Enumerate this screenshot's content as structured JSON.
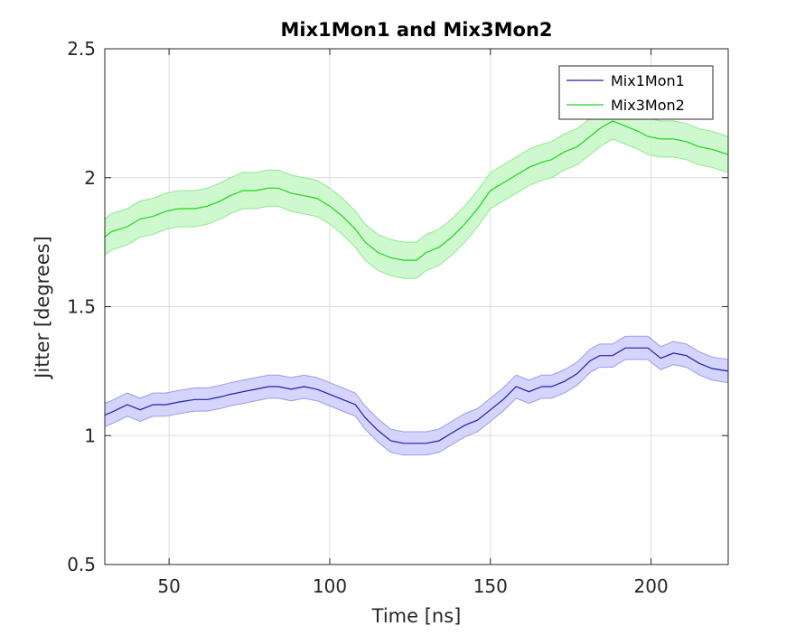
{
  "chart_data": {
    "type": "line",
    "title": "Mix1Mon1 and Mix3Mon2",
    "xlabel": "Time [ns]",
    "ylabel": "Jitter [degrees]",
    "xlim": [
      30,
      224
    ],
    "ylim": [
      0.5,
      2.5
    ],
    "xticks": [
      50,
      100,
      150,
      200
    ],
    "yticks": [
      0.5,
      1,
      1.5,
      2,
      2.5
    ],
    "xtick_labels": [
      "50",
      "100",
      "150",
      "200"
    ],
    "ytick_labels": [
      "0.5",
      "1",
      "1.5",
      "2",
      "2.5"
    ],
    "grid": true,
    "legend_position": "top-right",
    "x": [
      30,
      32,
      37,
      41,
      45,
      49,
      53,
      58,
      62,
      66,
      69,
      73,
      77,
      81,
      84,
      88,
      92,
      96,
      100,
      104,
      108,
      111,
      115,
      119,
      123,
      127,
      130,
      134,
      138,
      142,
      146,
      150,
      154,
      158,
      162,
      166,
      169,
      173,
      177,
      181,
      184,
      188,
      192,
      196,
      199,
      203,
      207,
      211,
      215,
      219,
      224
    ],
    "series": [
      {
        "name": "Mix1Mon1",
        "color": "#1f1fa6",
        "band_color": "#ccccff",
        "band_stroke": "#9b9be8",
        "values": [
          1.08,
          1.09,
          1.12,
          1.1,
          1.12,
          1.12,
          1.13,
          1.14,
          1.14,
          1.15,
          1.16,
          1.17,
          1.18,
          1.19,
          1.19,
          1.18,
          1.19,
          1.18,
          1.16,
          1.14,
          1.12,
          1.07,
          1.02,
          0.98,
          0.97,
          0.97,
          0.97,
          0.98,
          1.01,
          1.04,
          1.06,
          1.1,
          1.14,
          1.19,
          1.17,
          1.19,
          1.19,
          1.21,
          1.24,
          1.29,
          1.31,
          1.31,
          1.34,
          1.34,
          1.34,
          1.3,
          1.32,
          1.31,
          1.28,
          1.26,
          1.25
        ],
        "band_halfwidth": 0.045
      },
      {
        "name": "Mix3Mon2",
        "color": "#1fd41f",
        "band_color": "#c6f8c6",
        "band_stroke": "#8fe88f",
        "values": [
          1.77,
          1.79,
          1.81,
          1.84,
          1.85,
          1.87,
          1.88,
          1.88,
          1.89,
          1.91,
          1.93,
          1.95,
          1.95,
          1.96,
          1.96,
          1.94,
          1.93,
          1.92,
          1.89,
          1.85,
          1.8,
          1.75,
          1.71,
          1.69,
          1.68,
          1.68,
          1.71,
          1.73,
          1.77,
          1.82,
          1.88,
          1.95,
          1.98,
          2.01,
          2.04,
          2.06,
          2.07,
          2.1,
          2.12,
          2.16,
          2.19,
          2.22,
          2.2,
          2.18,
          2.16,
          2.15,
          2.15,
          2.14,
          2.12,
          2.11,
          2.09
        ],
        "band_halfwidth": 0.07
      }
    ]
  }
}
